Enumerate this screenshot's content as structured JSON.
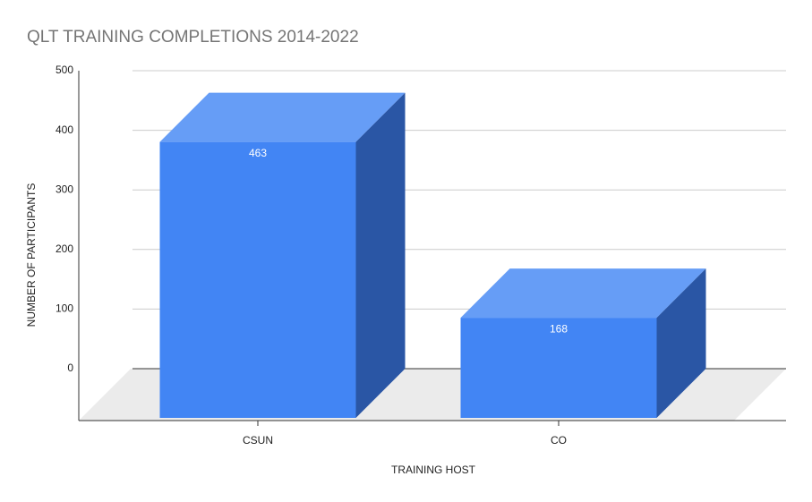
{
  "chart_data": {
    "type": "bar3d",
    "title": "QLT TRAINING COMPLETIONS 2014-2022",
    "x_label": "TRAINING HOST",
    "y_label": "NUMBER OF PARTICIPANTS",
    "categories": [
      "CSUN",
      "CO"
    ],
    "values": [
      463,
      168
    ],
    "color": "#4285f4",
    "top_color": "#669df6",
    "side_color": "#2a56a5",
    "ylim": [
      0,
      500
    ],
    "yticks": [
      0,
      100,
      200,
      300,
      400,
      500
    ],
    "grid": true
  }
}
